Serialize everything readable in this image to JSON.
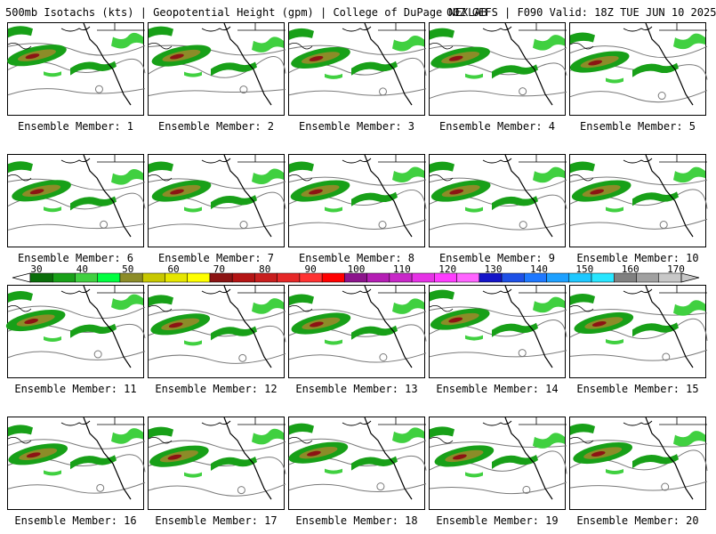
{
  "header": {
    "title": "500mb Isotachs (kts) | Geopotential Height (gpm) | College of DuPage NEXLAB",
    "model_info": "00Z GEFS | F090 Valid: 18Z TUE JUN 10 2025"
  },
  "members": [
    {
      "label": "Ensemble Member: 1"
    },
    {
      "label": "Ensemble Member: 2"
    },
    {
      "label": "Ensemble Member: 3"
    },
    {
      "label": "Ensemble Member: 4"
    },
    {
      "label": "Ensemble Member: 5"
    },
    {
      "label": "Ensemble Member: 6"
    },
    {
      "label": "Ensemble Member: 7"
    },
    {
      "label": "Ensemble Member: 8"
    },
    {
      "label": "Ensemble Member: 9"
    },
    {
      "label": "Ensemble Member: 10"
    },
    {
      "label": "Ensemble Member: 11"
    },
    {
      "label": "Ensemble Member: 12"
    },
    {
      "label": "Ensemble Member: 13"
    },
    {
      "label": "Ensemble Member: 14"
    },
    {
      "label": "Ensemble Member: 15"
    },
    {
      "label": "Ensemble Member: 16"
    },
    {
      "label": "Ensemble Member: 17"
    },
    {
      "label": "Ensemble Member: 18"
    },
    {
      "label": "Ensemble Member: 19"
    },
    {
      "label": "Ensemble Member: 20"
    }
  ],
  "colorbar": {
    "ticks": [
      "30",
      "40",
      "50",
      "60",
      "70",
      "80",
      "90",
      "100",
      "110",
      "120",
      "130",
      "140",
      "150",
      "160",
      "170"
    ],
    "colors": [
      "#0a6e0a",
      "#18a018",
      "#40d040",
      "#00ff40",
      "#8c8c28",
      "#c8c800",
      "#e6e600",
      "#ffff00",
      "#8c1414",
      "#b41414",
      "#c81e1e",
      "#e62828",
      "#ff3232",
      "#ff0000",
      "#8c148c",
      "#b41eb4",
      "#c828c8",
      "#e632e6",
      "#ff3cff",
      "#ff64ff",
      "#1414c8",
      "#1e50e6",
      "#1e78ff",
      "#1ea0ff",
      "#1ec8ff",
      "#28e6ff",
      "#808080",
      "#a0a0a0",
      "#c8c8c8"
    ]
  }
}
